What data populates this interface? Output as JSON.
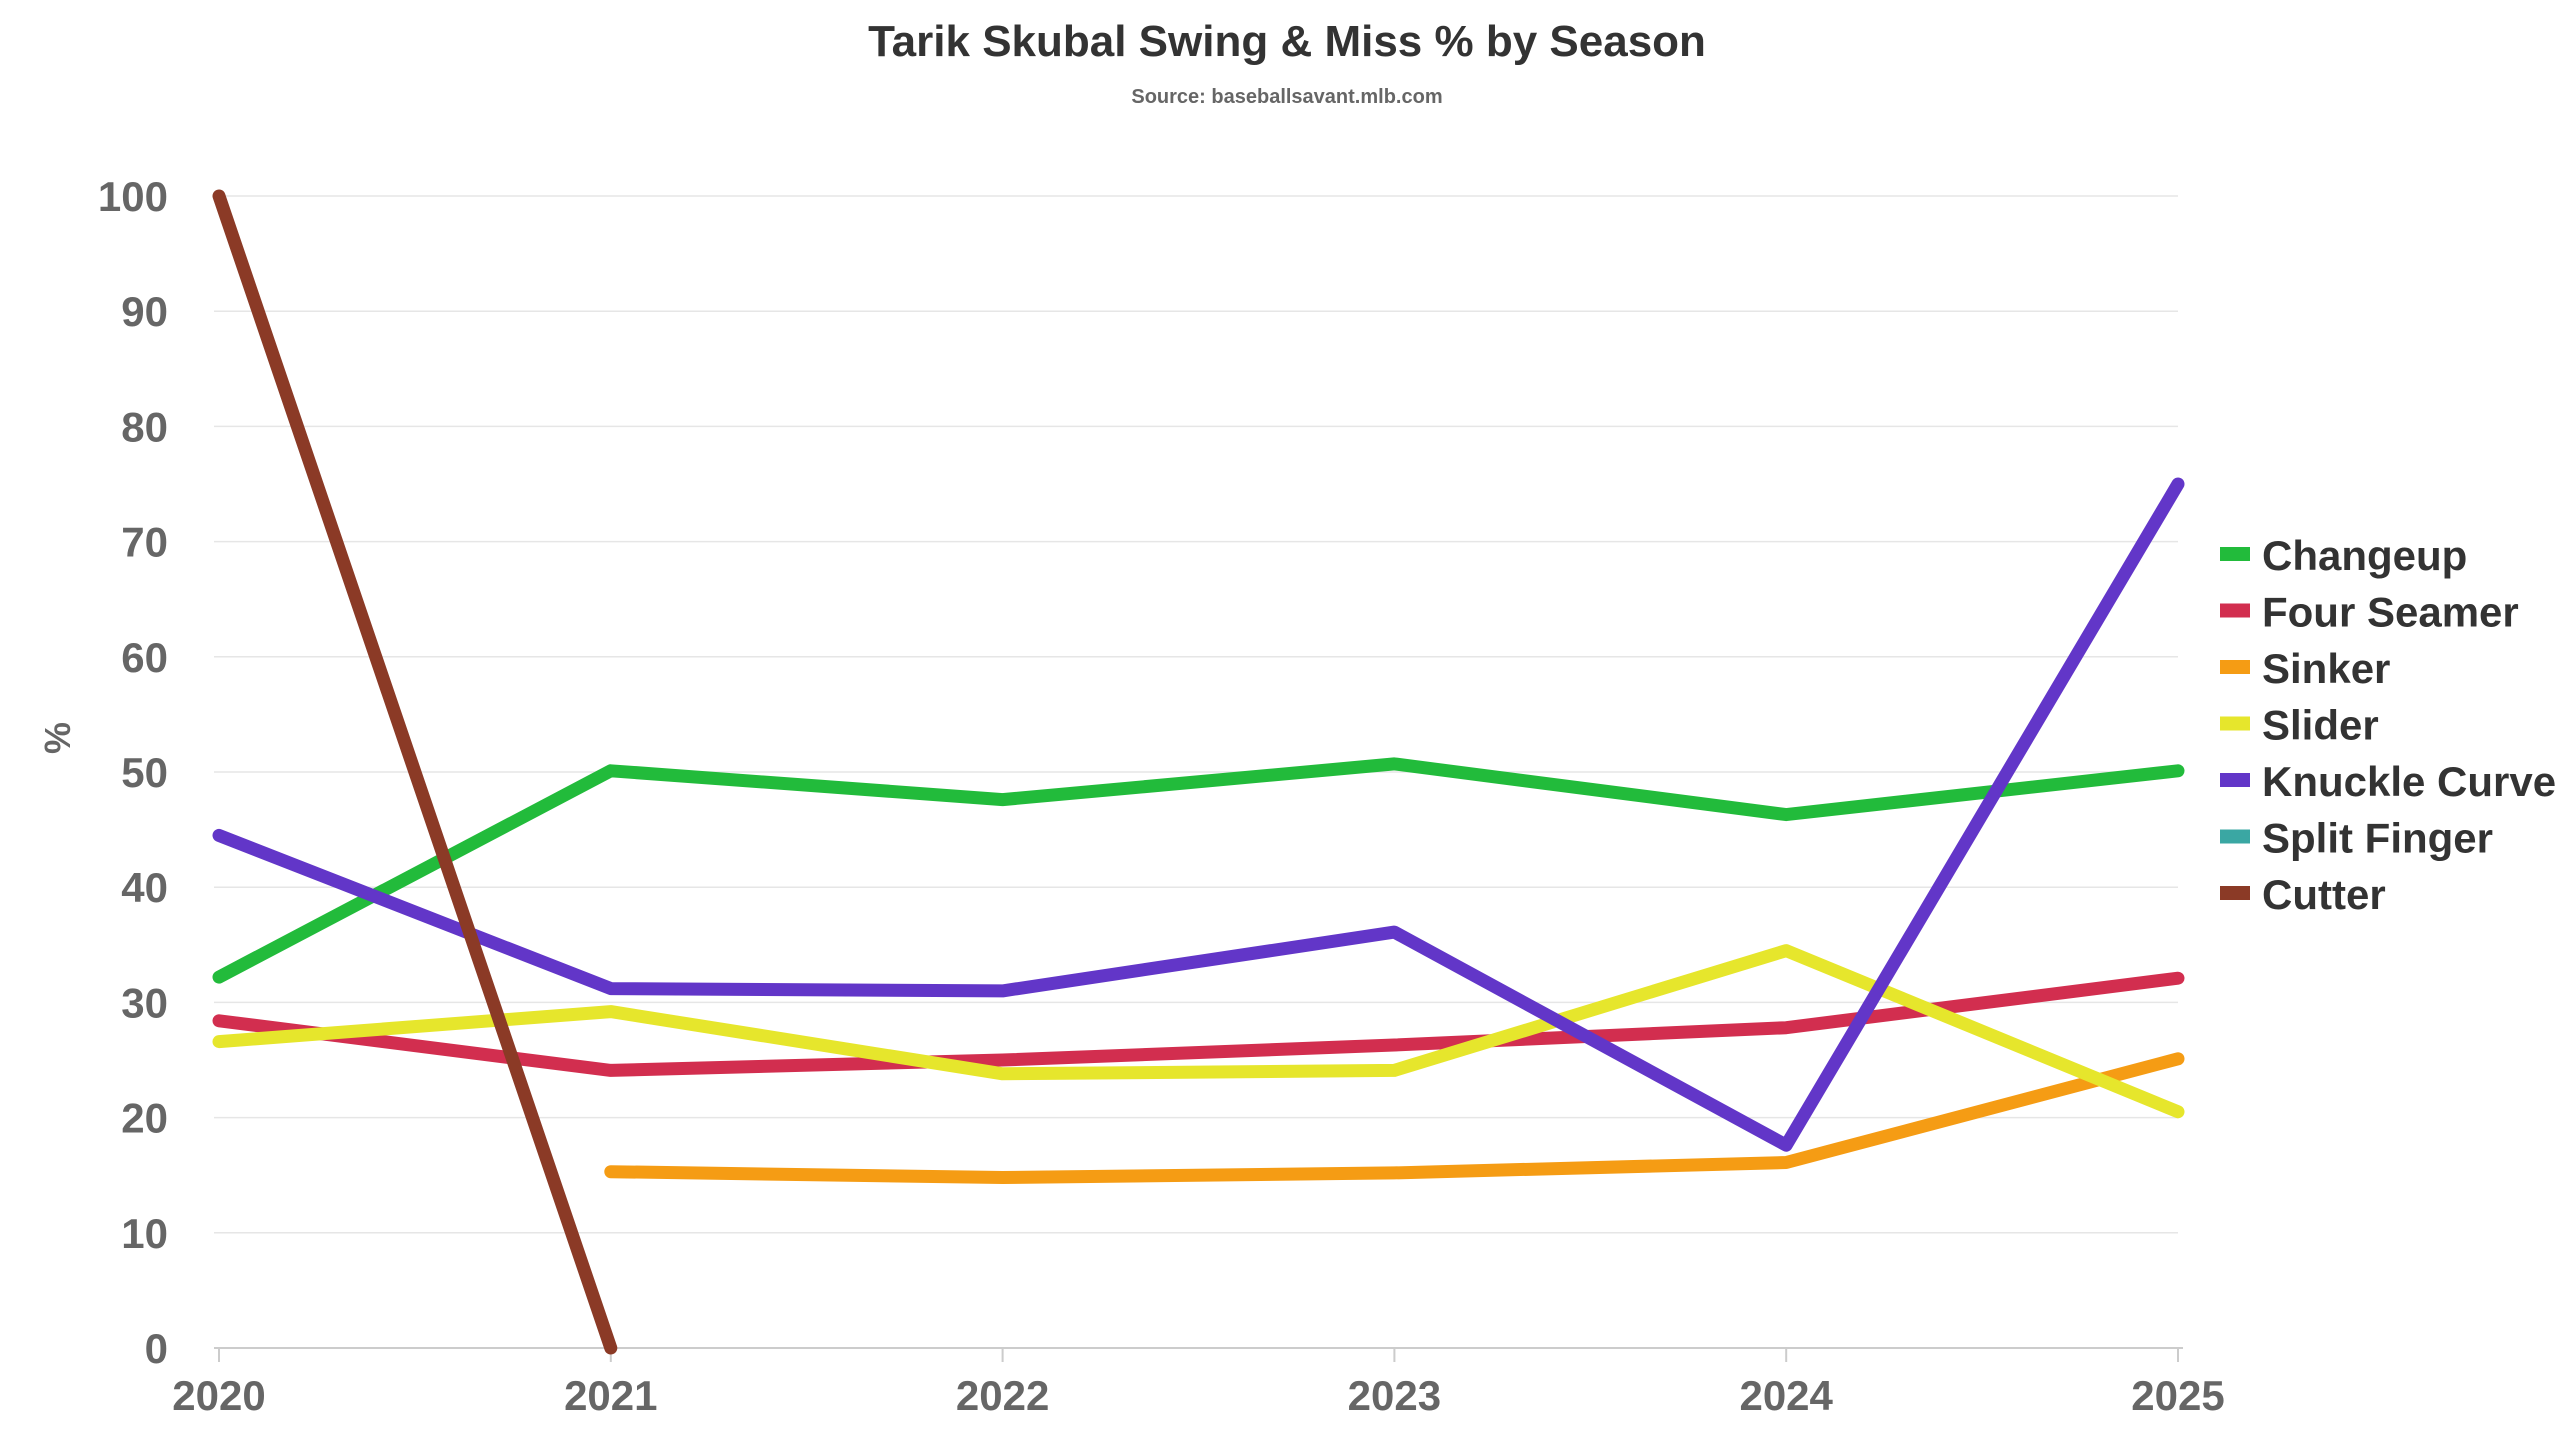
{
  "chart_data": {
    "type": "line",
    "title": "Tarik Skubal Swing & Miss % by Season",
    "subtitle": "Source: baseballsavant.mlb.com",
    "xlabel": "",
    "ylabel": "%",
    "x": [
      "2020",
      "2021",
      "2022",
      "2023",
      "2024",
      "2025"
    ],
    "ylim": [
      0,
      100
    ],
    "yticks": [
      "0",
      "10",
      "20",
      "30",
      "40",
      "50",
      "60",
      "70",
      "80",
      "90",
      "100"
    ],
    "grid": true,
    "legend_position": "right",
    "series": [
      {
        "name": "Changeup",
        "color": "#22bb3b",
        "values": [
          32.2,
          50.1,
          47.6,
          50.7,
          46.3,
          50.1
        ]
      },
      {
        "name": "Four Seamer",
        "color": "#d22e4f",
        "values": [
          28.4,
          24.1,
          25.0,
          26.3,
          27.8,
          32.1
        ]
      },
      {
        "name": "Sinker",
        "color": "#f59c14",
        "values": [
          null,
          15.3,
          14.8,
          15.2,
          16.1,
          25.1
        ]
      },
      {
        "name": "Slider",
        "color": "#e6e62c",
        "values": [
          26.6,
          29.2,
          23.8,
          24.1,
          34.5,
          20.5
        ]
      },
      {
        "name": "Knuckle Curve",
        "color": "#6236c8",
        "values": [
          44.5,
          31.2,
          31.0,
          36.1,
          17.6,
          75.0
        ]
      },
      {
        "name": "Split Finger",
        "color": "#3aa7a3",
        "values": [
          null,
          null,
          null,
          null,
          null,
          null
        ]
      },
      {
        "name": "Cutter",
        "color": "#8b3a26",
        "values": [
          100.0,
          0.0,
          null,
          null,
          null,
          null
        ]
      }
    ]
  }
}
